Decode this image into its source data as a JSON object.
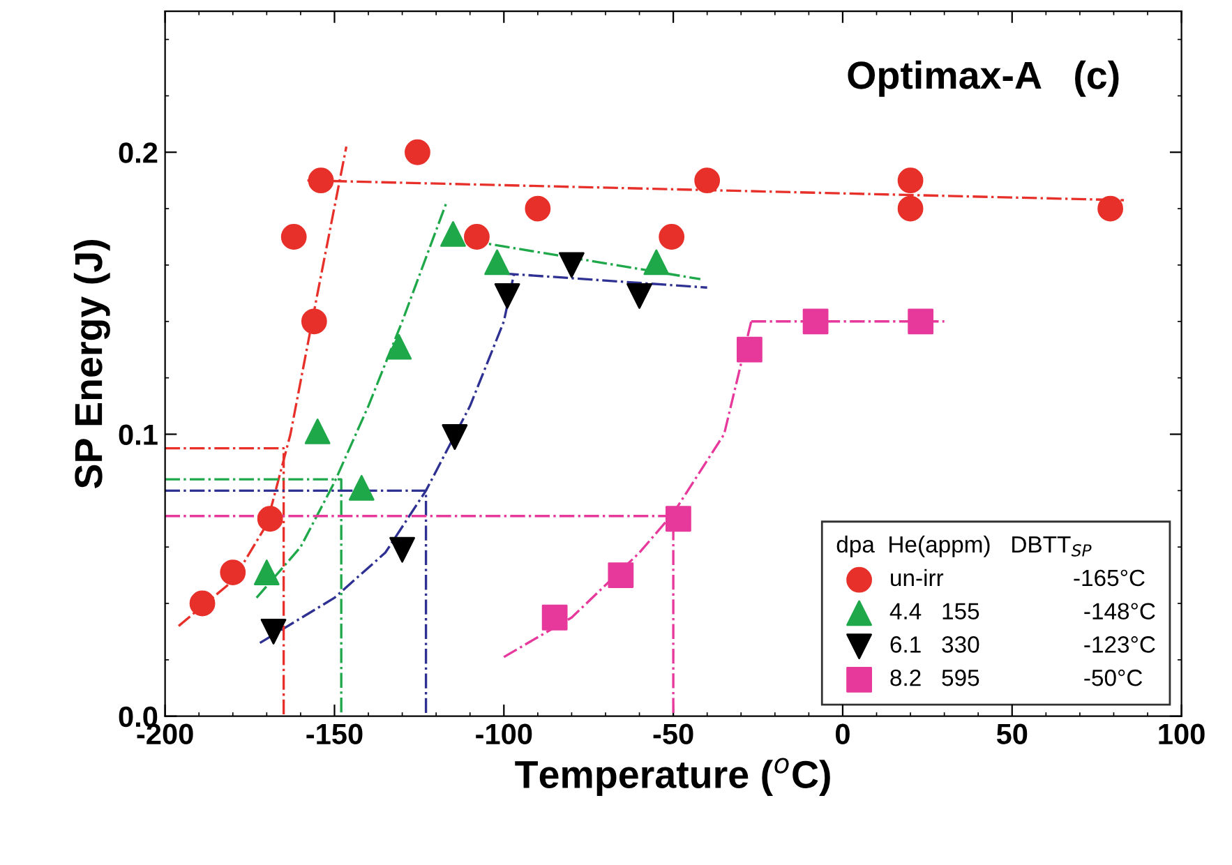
{
  "chart_data": {
    "type": "scatter",
    "title": "Optimax-A   (c)",
    "xlabel": "Temperature ($^{o}$C)",
    "ylabel": "SP Energy (J)",
    "legend_title": "dpa  He(appm)   DBTT$_{SP}$",
    "legend": "bottom right",
    "grid": false,
    "xlim": [
      -200,
      100
    ],
    "xticks": [
      -200,
      -150,
      -100,
      -50,
      0,
      50,
      100
    ],
    "ylim": [
      0,
      0.25
    ],
    "yticks": [
      {
        "value": 0,
        "label": "0.0"
      },
      0.1,
      0.2
    ],
    "series": [
      {
        "name": "un-irr                    -165°C",
        "marker": "circle",
        "color": "#e8302a",
        "x": [
          -189,
          -180,
          -169,
          -156,
          -162,
          -154,
          -125.5,
          -108,
          -90,
          -40,
          -50.5,
          20,
          20,
          79
        ],
        "values": [
          0.04,
          0.051,
          0.07,
          0.14,
          0.17,
          0.19,
          0.2,
          0.17,
          0.18,
          0.19,
          0.17,
          0.19,
          0.18,
          0.18
        ]
      },
      {
        "name": "4.4   155                -148°C",
        "marker": "triangle",
        "color": "#1fa84a",
        "x": [
          -170,
          -155,
          -142,
          -131,
          -115,
          -102,
          -55
        ],
        "values": [
          0.051,
          0.101,
          0.081,
          0.131,
          0.171,
          0.161,
          0.161
        ]
      },
      {
        "name": "6.1   330                -123°C",
        "marker": "triangle_down",
        "color": "#000000",
        "x": [
          -168,
          -130,
          -114.5,
          -99,
          -80,
          -60
        ],
        "values": [
          0.03,
          0.059,
          0.099,
          0.149,
          0.16,
          0.149
        ]
      },
      {
        "name": "8.2   595                -50°C",
        "marker": "square",
        "color": "#e6399b",
        "x": [
          -85,
          -65.5,
          -48.5,
          -27.5,
          -8,
          23
        ],
        "values": [
          0.035,
          0.05,
          0.07,
          0.13,
          0.14,
          0.14
        ]
      },
      {
        "type": "line",
        "line_style": "dashdot",
        "color": "#e8302a",
        "x": [
          -196,
          -180,
          -170,
          -163,
          -155,
          -146.5
        ],
        "values": [
          0.032,
          0.048,
          0.068,
          0.1,
          0.15,
          0.202
        ]
      },
      {
        "type": "line",
        "line_style": "dashdot",
        "color": "#e8302a",
        "x": [
          -158,
          83
        ],
        "values": [
          0.19,
          0.183
        ]
      },
      {
        "type": "line",
        "line_style": "dashdot",
        "color": "#1fa84a",
        "x": [
          -173,
          -160,
          -150,
          -140,
          -130,
          -117
        ],
        "values": [
          0.042,
          0.06,
          0.083,
          0.11,
          0.14,
          0.182
        ]
      },
      {
        "type": "line",
        "line_style": "dashdot",
        "color": "#1fa84a",
        "x": [
          -117,
          -42
        ],
        "values": [
          0.17,
          0.155
        ]
      },
      {
        "type": "line",
        "line_style": "dashdot",
        "color": "#2e3192",
        "x": [
          -172,
          -150,
          -135,
          -123,
          -110,
          -100,
          -97
        ],
        "values": [
          0.026,
          0.042,
          0.058,
          0.08,
          0.11,
          0.14,
          0.157
        ]
      },
      {
        "type": "line",
        "line_style": "dashdot",
        "color": "#2e3192",
        "x": [
          -100,
          -40
        ],
        "values": [
          0.157,
          0.152
        ]
      },
      {
        "type": "line",
        "line_style": "dashdot",
        "color": "#e6399b",
        "x": [
          -100,
          -80,
          -60,
          -50,
          -35,
          -27
        ],
        "values": [
          0.021,
          0.035,
          0.058,
          0.072,
          0.1,
          0.14
        ]
      },
      {
        "type": "line",
        "line_style": "dashdot",
        "color": "#e6399b",
        "x": [
          -27,
          30
        ],
        "values": [
          0.14,
          0.14
        ]
      },
      {
        "type": "line",
        "line_style": "dashdot",
        "color": "#e8302a",
        "x": [
          -200,
          -165,
          -165
        ],
        "values": [
          0.095,
          0.095,
          0
        ]
      },
      {
        "type": "line",
        "line_style": "dashdot",
        "color": "#1fa84a",
        "x": [
          -200,
          -148,
          -148
        ],
        "values": [
          0.084,
          0.084,
          0
        ]
      },
      {
        "type": "line",
        "line_style": "dashdot",
        "color": "#2e3192",
        "x": [
          -200,
          -123,
          -123
        ],
        "values": [
          0.08,
          0.08,
          0
        ]
      },
      {
        "type": "line",
        "line_style": "dashdot",
        "color": "#e6399b",
        "x": [
          -200,
          -50,
          -50
        ],
        "values": [
          0.071,
          0.071,
          0
        ]
      }
    ]
  }
}
